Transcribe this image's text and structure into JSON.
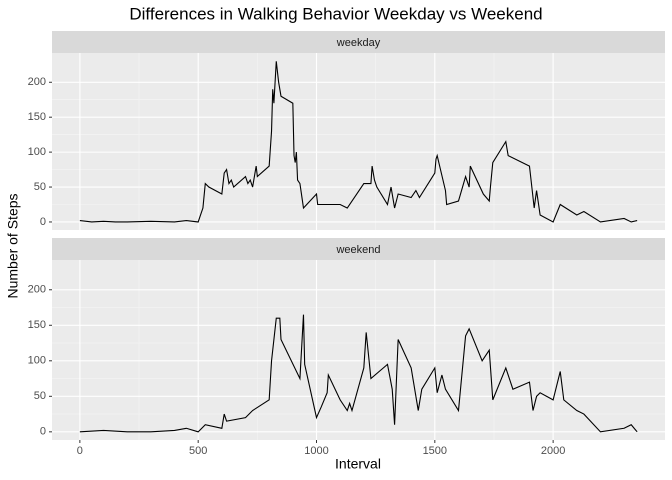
{
  "chart_data": {
    "type": "line",
    "title": "Differences in Walking Behavior Weekday vs Weekend",
    "xlabel": "Interval",
    "ylabel": "Number of Steps",
    "xlim": [
      -117.75,
      2472.75
    ],
    "ylim": [
      -11.5,
      241.9
    ],
    "xticks": [
      0,
      500,
      1000,
      1500,
      2000
    ],
    "yticks": [
      0,
      50,
      100,
      150,
      200
    ],
    "grid": true,
    "color": "#000000",
    "panels": [
      {
        "strip": "weekday",
        "x": [
          0,
          50,
          100,
          150,
          200,
          300,
          400,
          450,
          500,
          505,
          520,
          530,
          545,
          600,
          610,
          620,
          630,
          640,
          650,
          700,
          710,
          720,
          730,
          745,
          750,
          800,
          810,
          815,
          820,
          830,
          840,
          850,
          900,
          905,
          910,
          915,
          920,
          930,
          945,
          1000,
          1005,
          1100,
          1130,
          1200,
          1230,
          1235,
          1245,
          1255,
          1300,
          1315,
          1330,
          1345,
          1400,
          1420,
          1435,
          1500,
          1505,
          1510,
          1545,
          1550,
          1600,
          1630,
          1645,
          1650,
          1705,
          1730,
          1735,
          1745,
          1800,
          1810,
          1900,
          1920,
          1930,
          1945,
          2000,
          2030,
          2100,
          2130,
          2200,
          2300,
          2330,
          2355
        ],
        "values": [
          2,
          0,
          1,
          0,
          0,
          1,
          0,
          2,
          0,
          5,
          20,
          55,
          50,
          40,
          70,
          75,
          55,
          60,
          50,
          65,
          55,
          60,
          50,
          80,
          65,
          80,
          130,
          190,
          170,
          230,
          200,
          180,
          170,
          95,
          85,
          100,
          60,
          55,
          20,
          40,
          25,
          25,
          20,
          55,
          55,
          80,
          60,
          50,
          25,
          50,
          20,
          40,
          35,
          45,
          35,
          70,
          90,
          95,
          45,
          25,
          30,
          65,
          50,
          80,
          40,
          30,
          50,
          85,
          115,
          95,
          80,
          20,
          45,
          10,
          0,
          25,
          10,
          15,
          0,
          5,
          0,
          2
        ]
      },
      {
        "strip": "weekend",
        "x": [
          0,
          100,
          200,
          300,
          400,
          450,
          500,
          530,
          600,
          610,
          620,
          700,
          730,
          800,
          810,
          830,
          845,
          850,
          930,
          945,
          950,
          1000,
          1020,
          1045,
          1050,
          1100,
          1130,
          1140,
          1150,
          1200,
          1210,
          1230,
          1300,
          1320,
          1330,
          1345,
          1400,
          1430,
          1445,
          1500,
          1510,
          1530,
          1545,
          1600,
          1610,
          1630,
          1645,
          1700,
          1730,
          1745,
          1800,
          1830,
          1900,
          1915,
          1930,
          1945,
          2000,
          2030,
          2045,
          2100,
          2130,
          2200,
          2300,
          2330,
          2355
        ],
        "values": [
          0,
          2,
          0,
          0,
          2,
          5,
          0,
          10,
          5,
          25,
          15,
          20,
          30,
          45,
          100,
          160,
          160,
          130,
          75,
          165,
          95,
          20,
          35,
          55,
          80,
          45,
          30,
          40,
          30,
          90,
          140,
          75,
          95,
          60,
          10,
          130,
          90,
          30,
          60,
          90,
          55,
          80,
          60,
          30,
          65,
          135,
          145,
          100,
          115,
          45,
          90,
          60,
          70,
          30,
          50,
          55,
          45,
          85,
          45,
          30,
          25,
          0,
          5,
          10,
          0
        ]
      }
    ]
  }
}
